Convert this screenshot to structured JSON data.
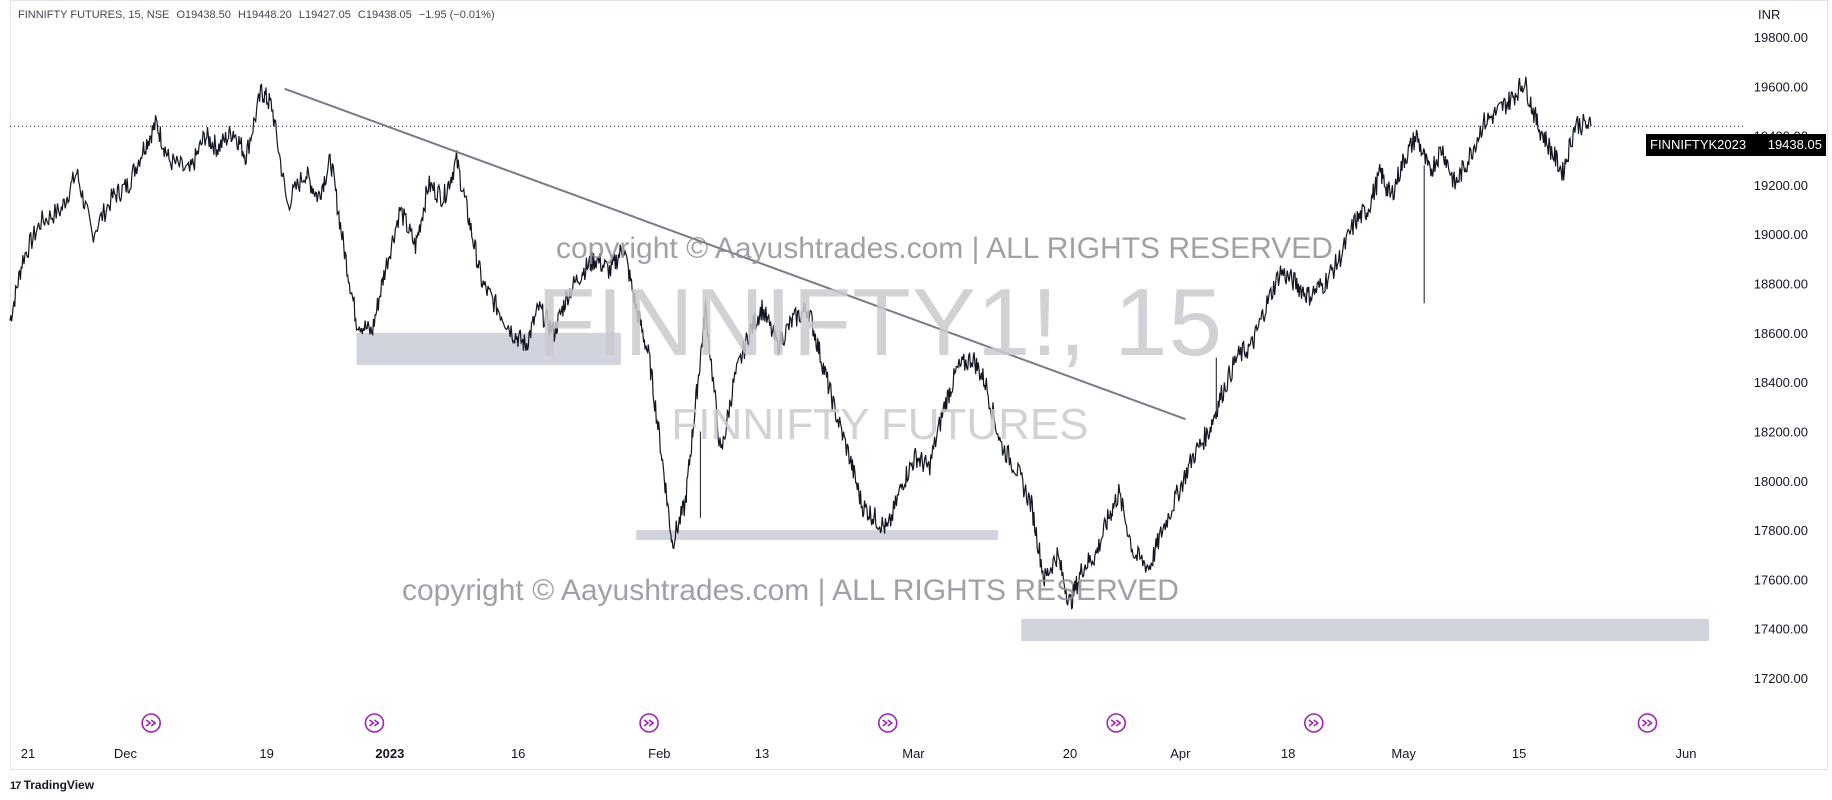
{
  "legend": {
    "symbol": "FINNIFTY FUTURES, 15, NSE",
    "open": "O19438.50",
    "high": "H19448.20",
    "low": "L19427.05",
    "close": "C19438.05",
    "change": "−1.95 (−0.01%)"
  },
  "currency": "INR",
  "watermark": {
    "symbol": "FINNIFTY1!, 15",
    "name": "FINNIFTY FUTURES",
    "copyright": "copyright © Aayushtrades.com | ALL RIGHTS RESERVED"
  },
  "price_tag": {
    "symbol": "FINNIFTYK2023",
    "price": "19438.05"
  },
  "branding": "TradingView",
  "colors": {
    "candle": "#131722",
    "zone": "#d1d4dc",
    "trendline": "#787b86",
    "event_icon": "#9c27b0"
  },
  "chart_data": {
    "type": "line",
    "title": "",
    "xlabel": "",
    "ylabel": "",
    "ylim": [
      17050,
      19950
    ],
    "yticks": [
      19800,
      19600,
      19400,
      19200,
      19000,
      18800,
      18600,
      18400,
      18200,
      18000,
      17800,
      17600,
      17400,
      17200
    ],
    "ytick_labels": [
      "19800.00",
      "19600.00",
      "19400.00",
      "19200.00",
      "19000.00",
      "18800.00",
      "18600.00",
      "18400.00",
      "18200.00",
      "18000.00",
      "17800.00",
      "17600.00",
      "17400.00",
      "17200.00"
    ],
    "xticks": [
      {
        "label": "21",
        "pos": 0.7,
        "bold": false
      },
      {
        "label": "Dec",
        "pos": 4.5,
        "bold": false
      },
      {
        "label": "19",
        "pos": 10.0,
        "bold": false
      },
      {
        "label": "2023",
        "pos": 14.8,
        "bold": true
      },
      {
        "label": "16",
        "pos": 19.8,
        "bold": false
      },
      {
        "label": "Feb",
        "pos": 25.3,
        "bold": false
      },
      {
        "label": "13",
        "pos": 29.3,
        "bold": false
      },
      {
        "label": "Mar",
        "pos": 35.2,
        "bold": false
      },
      {
        "label": "20",
        "pos": 41.3,
        "bold": false
      },
      {
        "label": "Apr",
        "pos": 45.6,
        "bold": false
      },
      {
        "label": "18",
        "pos": 49.8,
        "bold": false
      },
      {
        "label": "May",
        "pos": 54.3,
        "bold": false
      },
      {
        "label": "15",
        "pos": 58.8,
        "bold": false
      },
      {
        "label": "Jun",
        "pos": 65.3,
        "bold": false
      }
    ],
    "xlim": [
      0,
      67.6
    ],
    "series": [
      {
        "values": [
          [
            0.0,
            18650
          ],
          [
            0.5,
            18900
          ],
          [
            1.2,
            19050
          ],
          [
            2.0,
            19100
          ],
          [
            2.6,
            19250
          ],
          [
            3.2,
            19000
          ],
          [
            4.0,
            19150
          ],
          [
            4.6,
            19200
          ],
          [
            5.2,
            19350
          ],
          [
            5.7,
            19450
          ],
          [
            6.2,
            19300
          ],
          [
            7.0,
            19250
          ],
          [
            7.6,
            19400
          ],
          [
            8.1,
            19350
          ],
          [
            8.7,
            19420
          ],
          [
            9.2,
            19320
          ],
          [
            9.8,
            19580
          ],
          [
            10.2,
            19520
          ],
          [
            10.8,
            19120
          ],
          [
            11.5,
            19250
          ],
          [
            12.0,
            19150
          ],
          [
            12.5,
            19300
          ],
          [
            13.0,
            18950
          ],
          [
            13.5,
            18650
          ],
          [
            14.1,
            18600
          ],
          [
            14.6,
            18850
          ],
          [
            15.2,
            19100
          ],
          [
            15.8,
            18950
          ],
          [
            16.3,
            19200
          ],
          [
            16.9,
            19150
          ],
          [
            17.4,
            19300
          ],
          [
            17.9,
            19050
          ],
          [
            18.4,
            18800
          ],
          [
            19.0,
            18700
          ],
          [
            19.6,
            18600
          ],
          [
            20.1,
            18550
          ],
          [
            20.6,
            18700
          ],
          [
            21.2,
            18600
          ],
          [
            21.7,
            18750
          ],
          [
            22.3,
            18850
          ],
          [
            22.8,
            18900
          ],
          [
            23.4,
            18850
          ],
          [
            23.9,
            18950
          ],
          [
            24.4,
            18700
          ],
          [
            24.9,
            18500
          ],
          [
            25.4,
            18100
          ],
          [
            25.8,
            17750
          ],
          [
            26.3,
            17900
          ],
          [
            26.7,
            18300
          ],
          [
            27.1,
            18700
          ],
          [
            27.7,
            18100
          ],
          [
            28.2,
            18400
          ],
          [
            28.8,
            18600
          ],
          [
            29.3,
            18700
          ],
          [
            29.9,
            18550
          ],
          [
            30.5,
            18650
          ],
          [
            31.1,
            18700
          ],
          [
            31.6,
            18500
          ],
          [
            32.1,
            18300
          ],
          [
            32.7,
            18100
          ],
          [
            33.2,
            17900
          ],
          [
            33.7,
            17850
          ],
          [
            34.2,
            17800
          ],
          [
            34.8,
            18000
          ],
          [
            35.3,
            18100
          ],
          [
            35.8,
            18050
          ],
          [
            36.4,
            18300
          ],
          [
            36.9,
            18450
          ],
          [
            37.5,
            18500
          ],
          [
            38.0,
            18400
          ],
          [
            38.6,
            18150
          ],
          [
            39.2,
            18050
          ],
          [
            39.8,
            17900
          ],
          [
            40.3,
            17600
          ],
          [
            40.8,
            17700
          ],
          [
            41.3,
            17500
          ],
          [
            41.8,
            17650
          ],
          [
            42.3,
            17700
          ],
          [
            42.8,
            17850
          ],
          [
            43.2,
            17950
          ],
          [
            43.8,
            17700
          ],
          [
            44.4,
            17650
          ],
          [
            44.9,
            17800
          ],
          [
            45.5,
            17950
          ],
          [
            46.1,
            18100
          ],
          [
            46.7,
            18200
          ],
          [
            47.2,
            18350
          ],
          [
            47.8,
            18500
          ],
          [
            48.4,
            18550
          ],
          [
            48.9,
            18700
          ],
          [
            49.5,
            18850
          ],
          [
            50.1,
            18800
          ],
          [
            50.6,
            18750
          ],
          [
            51.2,
            18800
          ],
          [
            51.8,
            18900
          ],
          [
            52.4,
            19050
          ],
          [
            52.9,
            19100
          ],
          [
            53.4,
            19250
          ],
          [
            53.8,
            19150
          ],
          [
            54.3,
            19300
          ],
          [
            54.8,
            19400
          ],
          [
            55.3,
            19250
          ],
          [
            55.8,
            19350
          ],
          [
            56.3,
            19200
          ],
          [
            56.8,
            19300
          ],
          [
            57.4,
            19450
          ],
          [
            58.0,
            19500
          ],
          [
            58.5,
            19550
          ],
          [
            59.0,
            19620
          ],
          [
            59.5,
            19450
          ],
          [
            60.0,
            19350
          ],
          [
            60.5,
            19250
          ],
          [
            61.0,
            19450
          ],
          [
            61.6,
            19438
          ]
        ]
      }
    ],
    "spikes": [
      {
        "x": 55.1,
        "low": 18720,
        "high": 19280
      },
      {
        "x": 47.0,
        "low": 18250,
        "high": 18500
      },
      {
        "x": 26.9,
        "low": 17850,
        "high": 18200
      }
    ],
    "trendline": {
      "from": [
        10.7,
        19590
      ],
      "to": [
        45.8,
        18250
      ]
    },
    "zones": [
      {
        "x0": 13.5,
        "x1": 23.8,
        "y0": 18470,
        "y1": 18600
      },
      {
        "x0": 24.4,
        "x1": 38.5,
        "y0": 17760,
        "y1": 17800
      },
      {
        "x0": 39.4,
        "x1": 66.2,
        "y0": 17350,
        "y1": 17440
      }
    ],
    "last_price": 19438.05,
    "event_markers": [
      5.5,
      14.2,
      24.9,
      34.2,
      43.1,
      50.8,
      63.8
    ]
  }
}
